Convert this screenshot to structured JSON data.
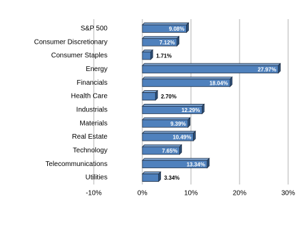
{
  "chart_data": {
    "type": "bar",
    "orientation": "horizontal",
    "categories": [
      "S&P 500",
      "Consumer Discretionary",
      "Consumer Staples",
      "Energy",
      "Financials",
      "Health Care",
      "Industrials",
      "Materials",
      "Real Estate",
      "Technology",
      "Telecommunications",
      "Utilities"
    ],
    "values": [
      9.08,
      7.12,
      1.71,
      27.97,
      18.04,
      2.7,
      12.29,
      9.39,
      10.49,
      7.65,
      13.34,
      3.34
    ],
    "value_labels": [
      "9.08%",
      "7.12%",
      "1.71%",
      "27.97%",
      "18.04%",
      "2.70%",
      "12.29%",
      "9.39%",
      "10.49%",
      "7.65%",
      "13.34%",
      "3.34%"
    ],
    "color": "#4f81bd",
    "xlim": [
      -10,
      30
    ],
    "xticks": [
      {
        "value": -10,
        "label": "-10%"
      },
      {
        "value": 0,
        "label": "0%"
      },
      {
        "value": 10,
        "label": "10%"
      },
      {
        "value": 20,
        "label": "20%"
      },
      {
        "value": 30,
        "label": "30%"
      }
    ],
    "grid": true
  }
}
